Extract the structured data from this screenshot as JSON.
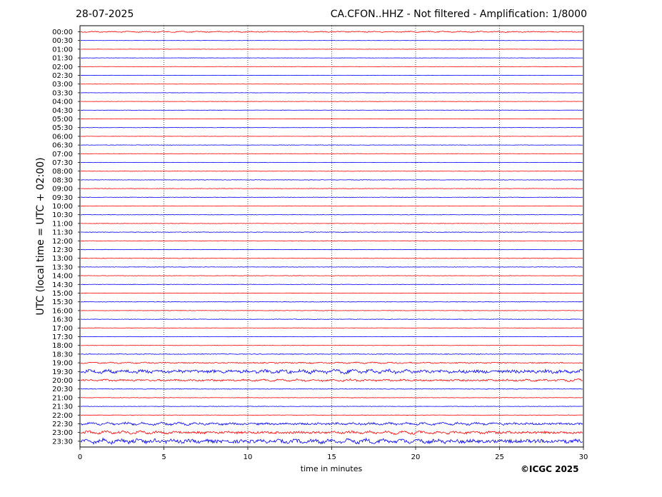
{
  "header": {
    "date": "28-07-2025",
    "title": "CA.CFON..HHZ - Not filtered - Amplification: 1/8000"
  },
  "footer": {
    "copyright": "©ICGC 2025"
  },
  "chart_data": {
    "type": "line",
    "title": "CA.CFON..HHZ - Not filtered - Amplification: 1/8000",
    "xlabel": "time in minutes",
    "ylabel": "UTC (local time = UTC + 02:00)",
    "xlim": [
      0,
      30
    ],
    "x_ticks": [
      "0",
      "5",
      "10",
      "15",
      "20",
      "25",
      "30"
    ],
    "x_tick_values": [
      0,
      5,
      10,
      15,
      20,
      25,
      30
    ],
    "vertical_gridlines_at": [
      5,
      10,
      15,
      20,
      25
    ],
    "grid": "vertical dotted lines",
    "trace_colors": [
      "#ff0000",
      "#0000ff"
    ],
    "rows": [
      {
        "label": "00:00",
        "color": "#ff0000",
        "amplitude": 1.2
      },
      {
        "label": "00:30",
        "color": "#0000ff",
        "amplitude": 0.4
      },
      {
        "label": "01:00",
        "color": "#ff0000",
        "amplitude": 0.4
      },
      {
        "label": "01:30",
        "color": "#0000ff",
        "amplitude": 0.4
      },
      {
        "label": "02:00",
        "color": "#ff0000",
        "amplitude": 0.4
      },
      {
        "label": "02:30",
        "color": "#0000ff",
        "amplitude": 0.4
      },
      {
        "label": "03:00",
        "color": "#ff0000",
        "amplitude": 0.4
      },
      {
        "label": "03:30",
        "color": "#0000ff",
        "amplitude": 0.4
      },
      {
        "label": "04:00",
        "color": "#ff0000",
        "amplitude": 0.5
      },
      {
        "label": "04:30",
        "color": "#0000ff",
        "amplitude": 0.5
      },
      {
        "label": "05:00",
        "color": "#ff0000",
        "amplitude": 0.4
      },
      {
        "label": "05:30",
        "color": "#0000ff",
        "amplitude": 0.4
      },
      {
        "label": "06:00",
        "color": "#ff0000",
        "amplitude": 0.4
      },
      {
        "label": "06:30",
        "color": "#0000ff",
        "amplitude": 0.5
      },
      {
        "label": "07:00",
        "color": "#ff0000",
        "amplitude": 0.5
      },
      {
        "label": "07:30",
        "color": "#0000ff",
        "amplitude": 0.5
      },
      {
        "label": "08:00",
        "color": "#ff0000",
        "amplitude": 0.5
      },
      {
        "label": "08:30",
        "color": "#0000ff",
        "amplitude": 0.6
      },
      {
        "label": "09:00",
        "color": "#ff0000",
        "amplitude": 0.6
      },
      {
        "label": "09:30",
        "color": "#0000ff",
        "amplitude": 0.6
      },
      {
        "label": "10:00",
        "color": "#ff0000",
        "amplitude": 0.6
      },
      {
        "label": "10:30",
        "color": "#0000ff",
        "amplitude": 0.6
      },
      {
        "label": "11:00",
        "color": "#ff0000",
        "amplitude": 0.6
      },
      {
        "label": "11:30",
        "color": "#0000ff",
        "amplitude": 0.7
      },
      {
        "label": "12:00",
        "color": "#ff0000",
        "amplitude": 0.6
      },
      {
        "label": "12:30",
        "color": "#0000ff",
        "amplitude": 0.6
      },
      {
        "label": "13:00",
        "color": "#ff0000",
        "amplitude": 0.6
      },
      {
        "label": "13:30",
        "color": "#0000ff",
        "amplitude": 0.6
      },
      {
        "label": "14:00",
        "color": "#ff0000",
        "amplitude": 0.6
      },
      {
        "label": "14:30",
        "color": "#0000ff",
        "amplitude": 0.6
      },
      {
        "label": "15:00",
        "color": "#ff0000",
        "amplitude": 0.6
      },
      {
        "label": "15:30",
        "color": "#0000ff",
        "amplitude": 0.7
      },
      {
        "label": "16:00",
        "color": "#ff0000",
        "amplitude": 0.6
      },
      {
        "label": "16:30",
        "color": "#0000ff",
        "amplitude": 0.7
      },
      {
        "label": "17:00",
        "color": "#ff0000",
        "amplitude": 0.5
      },
      {
        "label": "17:30",
        "color": "#0000ff",
        "amplitude": 0.5
      },
      {
        "label": "18:00",
        "color": "#ff0000",
        "amplitude": 0.5
      },
      {
        "label": "18:30",
        "color": "#0000ff",
        "amplitude": 0.9
      },
      {
        "label": "19:00",
        "color": "#ff0000",
        "amplitude": 1.4
      },
      {
        "label": "19:30",
        "color": "#0000ff",
        "amplitude": 4.0
      },
      {
        "label": "20:00",
        "color": "#ff0000",
        "amplitude": 2.2
      },
      {
        "label": "20:30",
        "color": "#0000ff",
        "amplitude": 0.8
      },
      {
        "label": "21:00",
        "color": "#ff0000",
        "amplitude": 0.6
      },
      {
        "label": "21:30",
        "color": "#0000ff",
        "amplitude": 0.6
      },
      {
        "label": "22:00",
        "color": "#ff0000",
        "amplitude": 0.6
      },
      {
        "label": "22:30",
        "color": "#0000ff",
        "amplitude": 2.6
      },
      {
        "label": "23:00",
        "color": "#ff0000",
        "amplitude": 3.0
      },
      {
        "label": "23:30",
        "color": "#0000ff",
        "amplitude": 4.5
      }
    ]
  }
}
